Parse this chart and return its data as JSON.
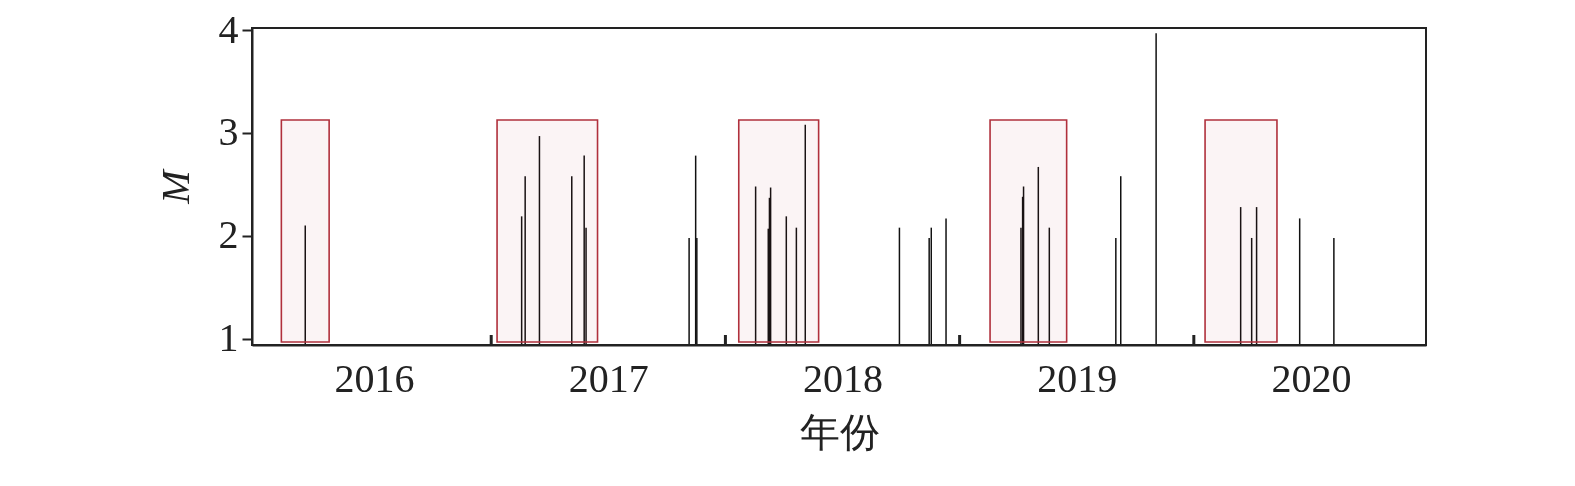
{
  "chart_data": {
    "type": "bar",
    "xlabel": "年份",
    "ylabel": "M",
    "x": [
      2016.206,
      2017.13,
      2017.145,
      2017.206,
      2017.344,
      2017.397,
      2017.405,
      2017.845,
      2017.873,
      2017.878,
      2018.129,
      2018.183,
      2018.188,
      2018.193,
      2018.26,
      2018.303,
      2018.341,
      2018.743,
      2018.87,
      2018.879,
      2018.942,
      2019.262,
      2019.269,
      2019.273,
      2019.336,
      2019.383,
      2019.667,
      2019.688,
      2019.839,
      2020.2,
      2020.247,
      2020.268,
      2020.452,
      2020.598
    ],
    "series": [
      {
        "color": "#111111",
        "values": [
          2.1,
          2.19,
          2.58,
          2.97,
          2.58,
          2.78,
          2.08,
          1.98,
          2.78,
          1.98,
          2.48,
          2.07,
          2.37,
          2.47,
          2.19,
          2.08,
          3.08,
          2.08,
          1.98,
          2.08,
          2.17,
          2.08,
          2.38,
          2.48,
          2.67,
          2.08,
          1.98,
          2.58,
          3.97,
          2.28,
          1.98,
          2.28,
          2.17,
          1.98
        ]
      }
    ],
    "xlim": [
      2016.0,
      2020.97
    ],
    "ylim": [
      0.94,
      4.02
    ],
    "xticks": [
      {
        "value": 2016.5,
        "label": "2016"
      },
      {
        "value": 2017,
        "label": null
      },
      {
        "value": 2017.5,
        "label": "2017"
      },
      {
        "value": 2018,
        "label": null
      },
      {
        "value": 2018.5,
        "label": "2018"
      },
      {
        "value": 2019,
        "label": null
      },
      {
        "value": 2019.5,
        "label": "2019"
      },
      {
        "value": 2020,
        "label": null
      },
      {
        "value": 2020.5,
        "label": "2020"
      }
    ],
    "yticks": [
      1,
      2,
      3,
      4
    ],
    "bands": [
      {
        "axis": "x",
        "from": 2016.104,
        "to": 2016.308,
        "color": "#b0303c"
      },
      {
        "axis": "x",
        "from": 2017.025,
        "to": 2017.454,
        "color": "#b0303c"
      },
      {
        "axis": "x",
        "from": 2018.057,
        "to": 2018.398,
        "color": "#b0303c"
      },
      {
        "axis": "x",
        "from": 2019.13,
        "to": 2019.457,
        "color": "#b0303c"
      },
      {
        "axis": "x",
        "from": 2020.048,
        "to": 2020.355,
        "color": "#b0303c"
      }
    ],
    "grid": false
  }
}
